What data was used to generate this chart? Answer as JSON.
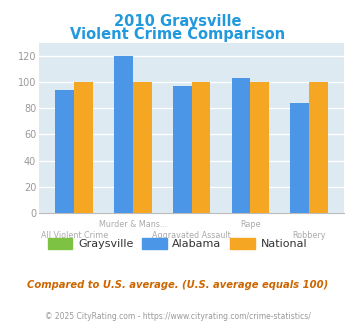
{
  "title_line1": "2010 Graysville",
  "title_line2": "Violent Crime Comparison",
  "categories": [
    "All Violent Crime",
    "Murder & Mans...",
    "Aggravated Assault",
    "Rape",
    "Robbery"
  ],
  "graysville": [
    0,
    0,
    0,
    0,
    0
  ],
  "alabama": [
    94,
    120,
    97,
    103,
    84
  ],
  "national": [
    100,
    100,
    100,
    100,
    100
  ],
  "color_graysville": "#7dc242",
  "color_alabama": "#4b96e6",
  "color_national": "#f5a623",
  "title_color": "#2299dd",
  "ylim": [
    0,
    130
  ],
  "yticks": [
    0,
    20,
    40,
    60,
    80,
    100,
    120
  ],
  "bg_color": "#ddeaf2",
  "annotation": "Compared to U.S. average. (U.S. average equals 100)",
  "footer_left": "© 2025 CityRating.com - ",
  "footer_right": "https://www.cityrating.com/crime-statistics/",
  "annotation_color": "#cc6600",
  "footer_left_color": "#999999",
  "footer_right_color": "#4499cc",
  "xtick_color": "#aaaaaa",
  "ytick_color": "#999999",
  "legend_text_color": "#333333"
}
